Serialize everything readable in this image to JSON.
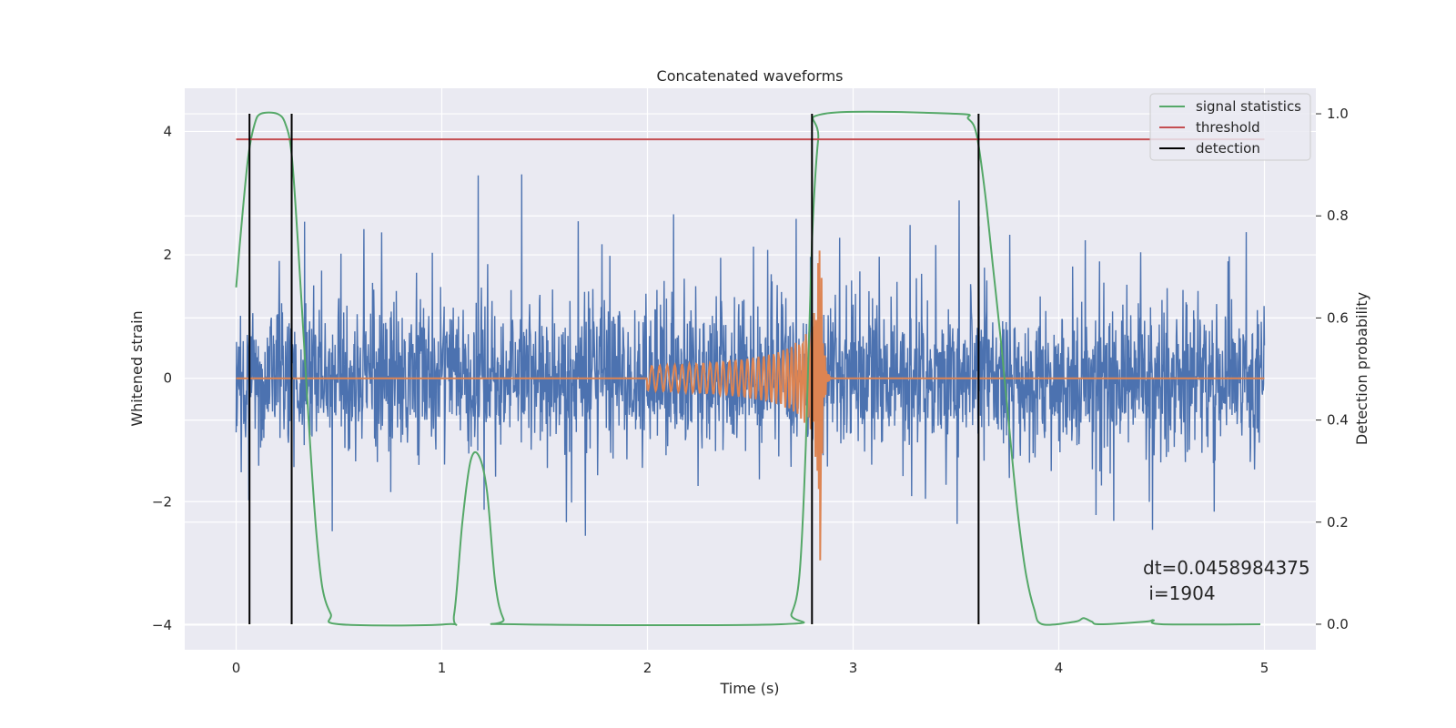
{
  "chart_data": {
    "type": "line",
    "title": "Concatenated waveforms",
    "xlabel": "Time (s)",
    "ylabel_left": "Whitened strain",
    "ylabel_right": "Detection probability",
    "xlim": [
      -0.25,
      5.25
    ],
    "ylim_left": [
      -4.4,
      4.7
    ],
    "ylim_right": [
      -0.05,
      1.05
    ],
    "xticks": [
      0,
      1,
      2,
      3,
      4,
      5
    ],
    "yticks_left": [
      -4,
      -2,
      0,
      2,
      4
    ],
    "yticks_right": [
      0.0,
      0.2,
      0.4,
      0.6,
      0.8,
      1.0
    ],
    "grid": true,
    "legend_position": "top-right",
    "series": [
      {
        "name": "",
        "axis": "left",
        "color": "#4c72b0",
        "kind": "noisy whitened strain",
        "x_range": [
          0,
          5
        ]
      },
      {
        "name": "",
        "axis": "left",
        "color": "#dd8452",
        "kind": "chirp waveform",
        "x_range": [
          0,
          5
        ],
        "chirp_start": 2.0,
        "chirp_peak": 2.84,
        "peak_amplitude": 3.0
      },
      {
        "name": "signal statistics",
        "axis": "right",
        "color": "#55a868",
        "points": [
          [
            0.0,
            0.66
          ],
          [
            0.03,
            0.8
          ],
          [
            0.06,
            0.92
          ],
          [
            0.09,
            0.98
          ],
          [
            0.12,
            1.0
          ],
          [
            0.2,
            1.0
          ],
          [
            0.24,
            0.98
          ],
          [
            0.27,
            0.92
          ],
          [
            0.3,
            0.75
          ],
          [
            0.33,
            0.55
          ],
          [
            0.36,
            0.35
          ],
          [
            0.39,
            0.18
          ],
          [
            0.42,
            0.07
          ],
          [
            0.46,
            0.02
          ],
          [
            0.5,
            0.0
          ],
          [
            1.02,
            0.0
          ],
          [
            1.06,
            0.02
          ],
          [
            1.1,
            0.2
          ],
          [
            1.14,
            0.32
          ],
          [
            1.18,
            0.33
          ],
          [
            1.22,
            0.26
          ],
          [
            1.26,
            0.08
          ],
          [
            1.3,
            0.01
          ],
          [
            1.35,
            0.0
          ],
          [
            2.65,
            0.0
          ],
          [
            2.7,
            0.02
          ],
          [
            2.74,
            0.1
          ],
          [
            2.77,
            0.35
          ],
          [
            2.8,
            0.75
          ],
          [
            2.83,
            0.95
          ],
          [
            2.86,
            1.0
          ],
          [
            3.5,
            1.0
          ],
          [
            3.56,
            0.99
          ],
          [
            3.6,
            0.96
          ],
          [
            3.64,
            0.85
          ],
          [
            3.68,
            0.7
          ],
          [
            3.72,
            0.55
          ],
          [
            3.76,
            0.38
          ],
          [
            3.8,
            0.22
          ],
          [
            3.84,
            0.1
          ],
          [
            3.88,
            0.03
          ],
          [
            3.92,
            0.0
          ],
          [
            4.08,
            0.005
          ],
          [
            4.12,
            0.012
          ],
          [
            4.16,
            0.005
          ],
          [
            4.2,
            0.0
          ],
          [
            4.42,
            0.005
          ],
          [
            4.46,
            0.008
          ],
          [
            4.5,
            0.0
          ],
          [
            4.98,
            0.0
          ]
        ]
      },
      {
        "name": "threshold",
        "axis": "right",
        "color": "#c44e52",
        "y": 0.95,
        "x_range": [
          0,
          5
        ]
      },
      {
        "name": "detection",
        "axis": "right",
        "color": "#000000",
        "x": [
          0.065,
          0.27,
          2.8,
          3.61
        ],
        "y_range": [
          0.0,
          1.0
        ]
      }
    ],
    "annotation": {
      "line1": "dt=0.0458984375",
      "line2": " i=1904",
      "x": 4.52,
      "y_right": 0.1
    }
  },
  "colors": {
    "background": "#eaeaf2",
    "grid": "#ffffff",
    "text": "#262626"
  }
}
